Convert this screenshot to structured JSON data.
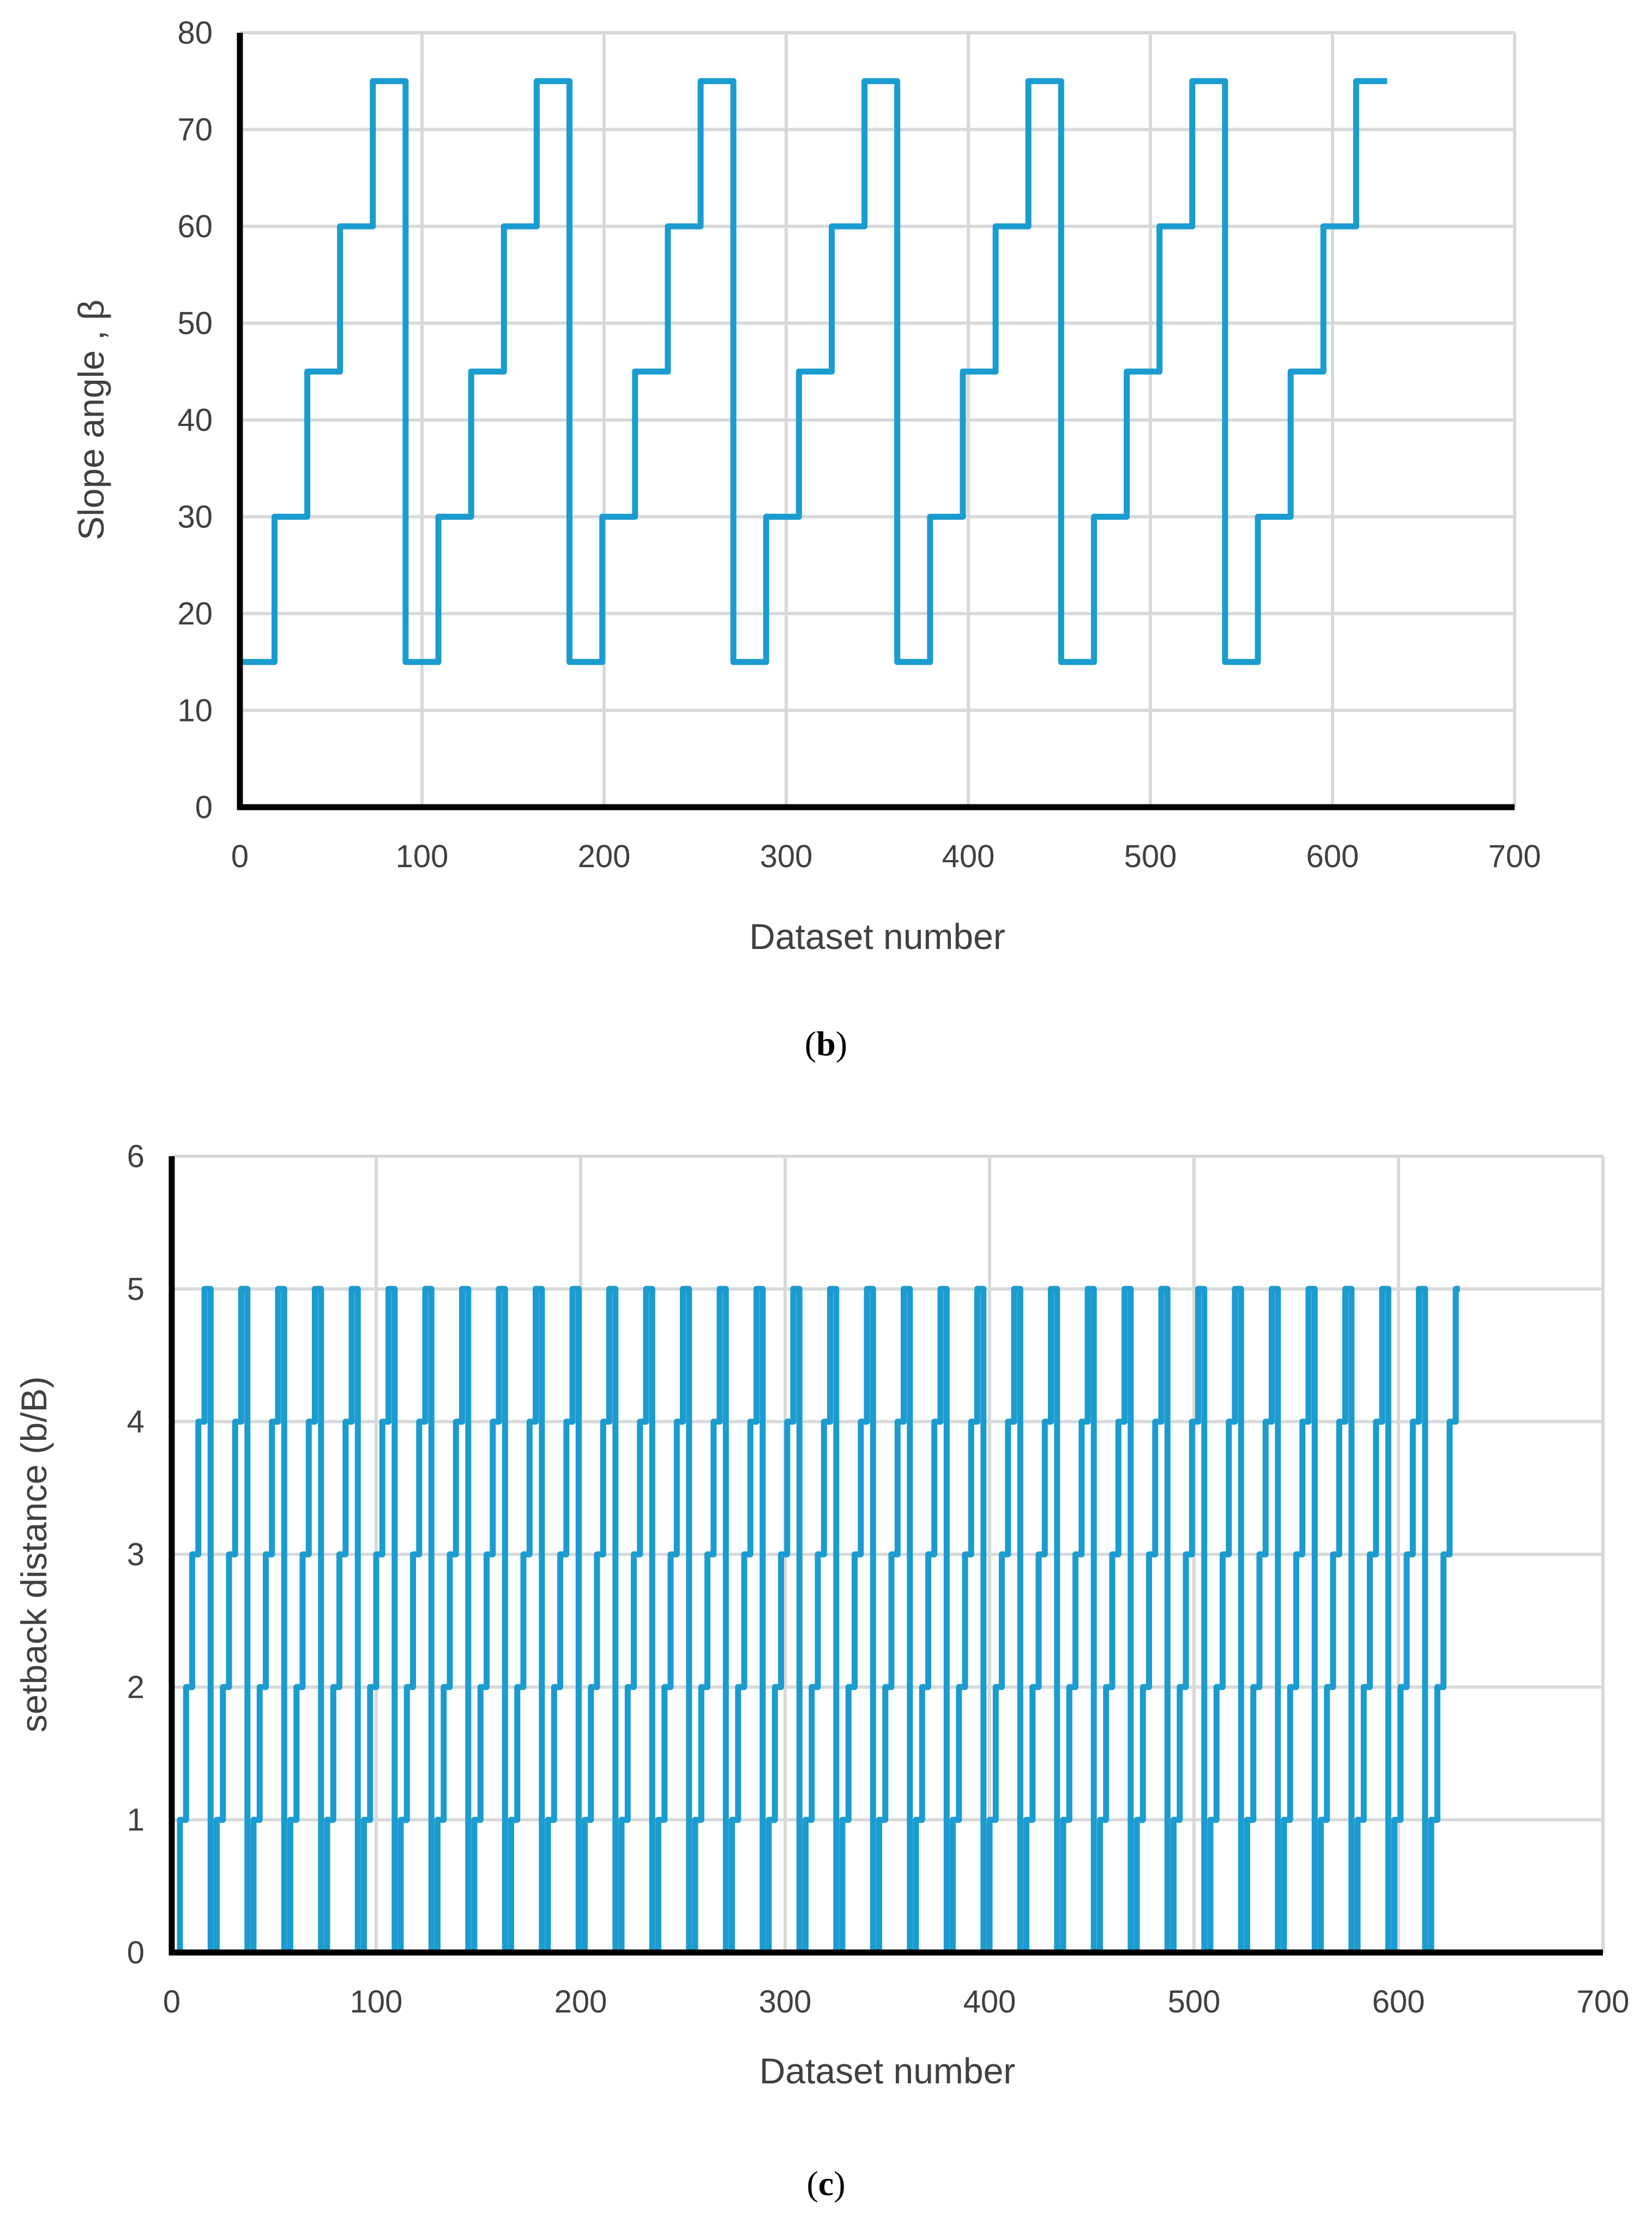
{
  "colors": {
    "line": "#1a9cd0",
    "grid": "#d9d9d9",
    "axis": "#000000",
    "text": "#404040"
  },
  "chart_data": [
    {
      "type": "line",
      "panel": "b",
      "caption_open": "(",
      "caption_letter": "b",
      "caption_close": ")",
      "xlabel": "Dataset number",
      "ylabel": "Slope angle , β",
      "xlim": [
        0,
        700
      ],
      "ylim": [
        0,
        80
      ],
      "xticks": [
        0,
        100,
        200,
        300,
        400,
        500,
        600,
        700
      ],
      "yticks": [
        0,
        10,
        20,
        30,
        40,
        50,
        60,
        70,
        80
      ],
      "xgrid_vertical": true,
      "series": [
        {
          "name": "Slope angle",
          "step_levels": [
            15,
            30,
            45,
            60,
            75
          ],
          "points_per_level": 18,
          "total_points": 630,
          "description": "staircase: each level held for 18 datasets, cycle of 90 datasets repeated 7 times"
        }
      ]
    },
    {
      "type": "line",
      "panel": "c",
      "caption_open": "(",
      "caption_letter": "c",
      "caption_close": ")",
      "xlabel": "Dataset number",
      "ylabel": "setback distance (b/B)",
      "xlim": [
        0,
        700
      ],
      "ylim": [
        0,
        6
      ],
      "xticks": [
        0,
        100,
        200,
        300,
        400,
        500,
        600,
        700
      ],
      "yticks": [
        0,
        1,
        2,
        3,
        4,
        5,
        6
      ],
      "xgrid_vertical": true,
      "series": [
        {
          "name": "Setback distance",
          "step_levels": [
            0,
            1,
            2,
            3,
            4,
            5
          ],
          "points_per_level": 3,
          "total_points": 630,
          "description": "staircase: each level held for 3 datasets, cycle of 18 datasets repeated 35 times"
        }
      ]
    }
  ]
}
